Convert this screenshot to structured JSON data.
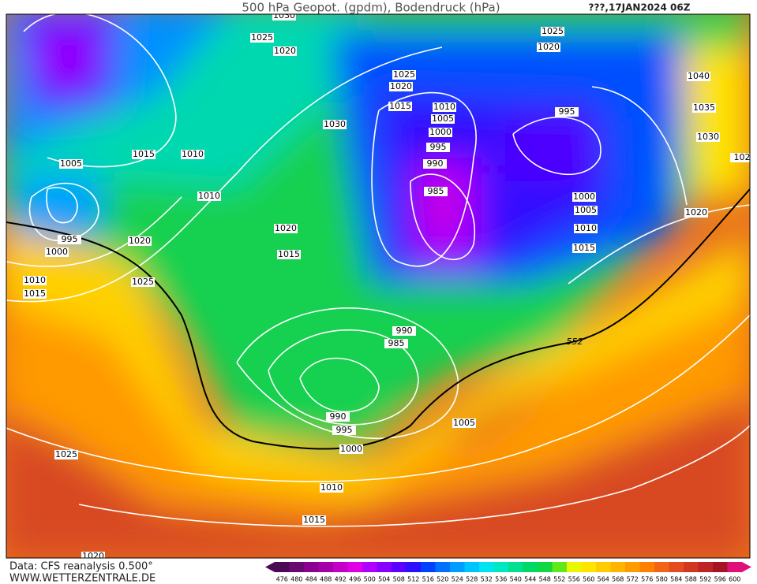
{
  "header": {
    "title": "500 hPa Geopot. (gpdm), Bodendruck (hPa)",
    "date": "???,17JAN2024 06Z"
  },
  "footer": {
    "source": "Data: CFS reanalysis 0.500°",
    "site": "WWW.WETTERZENTRALE.DE"
  },
  "contour_label": "552",
  "isobar_labels": [
    "1030",
    "1025",
    "1020",
    "1025",
    "1020",
    "1025",
    "1020",
    "1015",
    "1010",
    "1005",
    "1000",
    "995",
    "990",
    "985",
    "1030",
    "995",
    "1040",
    "1035",
    "1030",
    "102",
    "1005",
    "1015",
    "1010",
    "1010",
    "1020",
    "1015",
    "1020",
    "995",
    "1000",
    "1010",
    "1015",
    "1025",
    "1000",
    "1005",
    "1010",
    "1015",
    "1020",
    "990",
    "985",
    "990",
    "995",
    "1000",
    "1005",
    "1010",
    "1015",
    "1025",
    "1020"
  ],
  "colorbar": {
    "values": [
      476,
      480,
      484,
      488,
      492,
      496,
      500,
      504,
      508,
      512,
      516,
      520,
      524,
      528,
      532,
      536,
      540,
      544,
      548,
      552,
      556,
      560,
      564,
      568,
      572,
      576,
      580,
      584,
      588,
      592,
      596,
      600
    ],
    "colors": [
      "#4b0a55",
      "#6a0a70",
      "#8a0090",
      "#a400aa",
      "#c400c8",
      "#e000e6",
      "#b000ff",
      "#8800ff",
      "#5c00ff",
      "#2a10ff",
      "#0040ff",
      "#0070ff",
      "#009cff",
      "#00c4ff",
      "#00e4f0",
      "#00e8c0",
      "#00e090",
      "#00d868",
      "#10d840",
      "#60e818",
      "#e8f800",
      "#ffe400",
      "#ffcc00",
      "#ffb400",
      "#ff9a00",
      "#ff8000",
      "#f46418",
      "#e24c1e",
      "#d03822",
      "#be2424",
      "#a41424",
      "#e0107a"
    ]
  }
}
